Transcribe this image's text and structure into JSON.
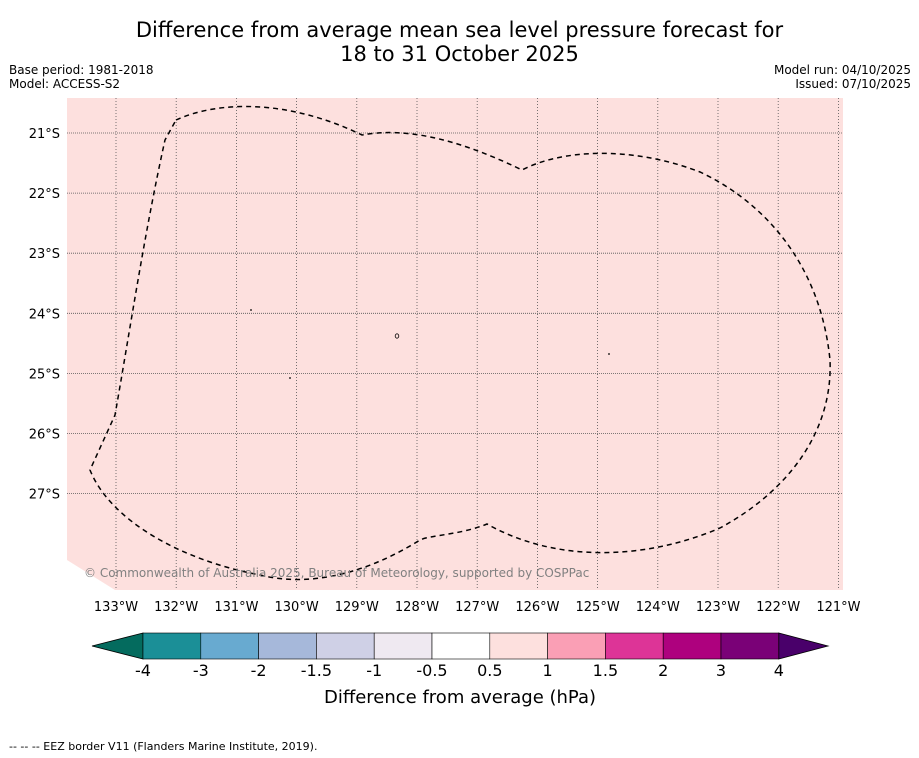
{
  "title_line1": "Difference from average mean sea level pressure forecast for",
  "title_line2": "18 to 31 October 2025",
  "base_period": "Base period: 1981-2018",
  "model": "Model: ACCESS-S2",
  "model_run": "Model run: 04/10/2025",
  "issued": "Issued: 07/10/2025",
  "map": {
    "fill_color": "#fde0de",
    "lon_ticks": [
      "133°W",
      "132°W",
      "131°W",
      "130°W",
      "129°W",
      "128°W",
      "127°W",
      "126°W",
      "125°W",
      "124°W",
      "123°W",
      "122°W",
      "121°W"
    ],
    "lat_ticks": [
      "21°S",
      "22°S",
      "23°S",
      "24°S",
      "25°S",
      "26°S",
      "27°S"
    ],
    "watermark": "© Commonwealth of Australia 2025, Bureau of Meteorology, supported by COSPPac"
  },
  "colorbar": {
    "colors": [
      "#046b5e",
      "#1b8f97",
      "#68aad0",
      "#a6b8da",
      "#cfd0e6",
      "#efe9f1",
      "#ffffff",
      "#fde0de",
      "#fa9fb5",
      "#dd3497",
      "#ae017e",
      "#7a0177",
      "#49006a"
    ],
    "tick_labels": [
      "-4",
      "-3",
      "-2",
      "-1.5",
      "-1",
      "-0.5",
      "0.5",
      "1",
      "1.5",
      "2",
      "3",
      "4"
    ],
    "label": "Difference from average (hPa)"
  },
  "footnote": "--  --  -- EEZ border V11 (Flanders Marine Institute, 2019)."
}
